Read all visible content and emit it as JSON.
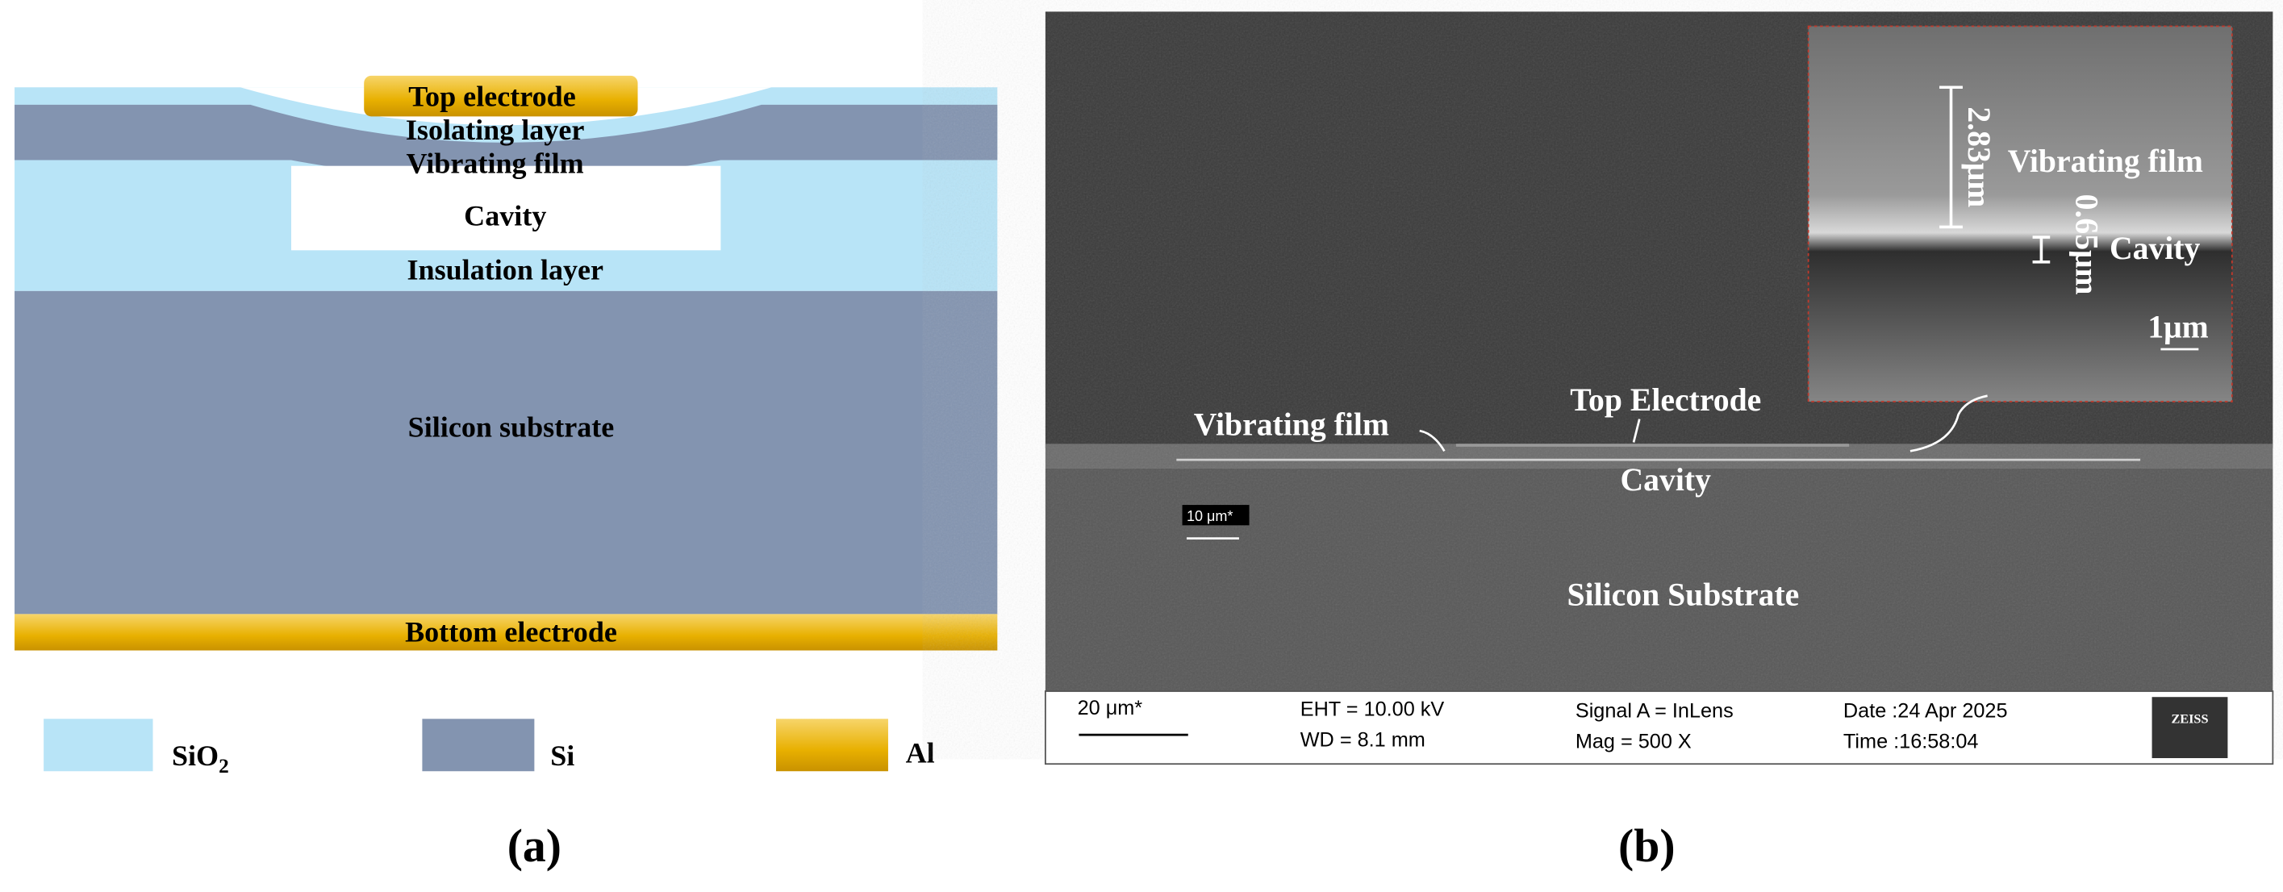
{
  "panel_a": {
    "layers": {
      "top_electrode": "Top electrode",
      "isolating_layer": "Isolating layer",
      "vibrating_film": "Vibrating film",
      "cavity": "Cavity",
      "insulation_layer": "Insulation layer",
      "substrate": "Silicon substrate",
      "bottom_electrode": "Bottom electrode"
    },
    "legend": {
      "sio2": {
        "text": "SiO",
        "subscript": "2"
      },
      "si": "Si",
      "al": "Al"
    },
    "caption": "(a)"
  },
  "panel_b": {
    "labels": {
      "vibrating_film": "Vibrating film",
      "top_electrode": "Top Electrode",
      "cavity": "Cavity",
      "substrate": "Silicon Substrate",
      "scale_small": "10 μm*"
    },
    "inset": {
      "vibrating_film": "Vibrating film",
      "cavity": "Cavity",
      "thickness_film": "2.83μm",
      "thickness_cavity": "0.65μm",
      "scale": "1μm"
    },
    "info_bar": {
      "scale": "20 μm*",
      "eht": "EHT = 10.00 kV",
      "wd": "WD =  8.1 mm",
      "signal": "Signal A = InLens",
      "mag": "Mag =    500 X",
      "date": "Date :24 Apr 2025",
      "time": "Time :16:58:04",
      "logo": "ZEISS"
    },
    "caption": "(b)"
  }
}
